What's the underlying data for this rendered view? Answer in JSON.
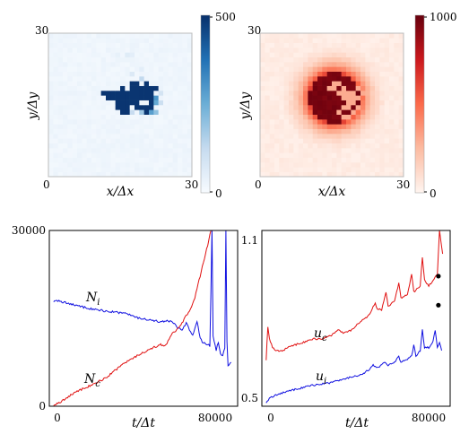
{
  "chart_data": [
    {
      "type": "heatmap",
      "colormap": "Blues",
      "grid_size": 30,
      "xlabel": "x/Δx",
      "ylabel": "y/Δy",
      "x_ticks": [
        "0",
        "30"
      ],
      "y_ticks": [
        "0",
        "30"
      ],
      "colorbar_ticks": [
        "0",
        "500"
      ],
      "clim": [
        0,
        500
      ],
      "background_value": 12,
      "cluster": {
        "rows": [
          {
            "y": 19,
            "x": [
              17,
              18,
              20
            ]
          },
          {
            "y": 18,
            "x": [
              15,
              17,
              18,
              19,
              20,
              21,
              22
            ]
          },
          {
            "y": 17,
            "x": [
              11,
              12,
              13,
              14,
              15,
              16,
              17,
              18,
              19,
              20,
              21
            ]
          },
          {
            "y": 16,
            "x": [
              12,
              13,
              14,
              15,
              16,
              17,
              18,
              19,
              20,
              21
            ]
          },
          {
            "y": 15,
            "x": [
              14,
              15,
              16,
              17,
              18,
              21
            ]
          },
          {
            "y": 14,
            "x": [
              14,
              15,
              16,
              18,
              19,
              20,
              21
            ]
          },
          {
            "y": 13,
            "x": [
              15,
              16,
              20
            ]
          }
        ],
        "value": 490
      },
      "halo": [
        {
          "x": 22,
          "y": 18,
          "v": 220
        },
        {
          "x": 22,
          "y": 16,
          "v": 300
        },
        {
          "x": 22,
          "y": 15,
          "v": 260
        },
        {
          "x": 21,
          "y": 13,
          "v": 280
        },
        {
          "x": 22,
          "y": 13,
          "v": 200
        },
        {
          "x": 19,
          "y": 13,
          "v": 180
        },
        {
          "x": 17,
          "y": 13,
          "v": 120
        },
        {
          "x": 23,
          "y": 17,
          "v": 90
        },
        {
          "x": 23,
          "y": 15,
          "v": 110
        },
        {
          "x": 19,
          "y": 20,
          "v": 130
        },
        {
          "x": 17,
          "y": 21,
          "v": 70
        },
        {
          "x": 16,
          "y": 25,
          "v": 60
        },
        {
          "x": 17,
          "y": 25,
          "v": 50
        },
        {
          "x": 14,
          "y": 25,
          "v": 40
        },
        {
          "x": 19,
          "y": 22,
          "v": 50
        }
      ]
    },
    {
      "type": "heatmap",
      "colormap": "Reds",
      "grid_size": 30,
      "xlabel": "x/Δx",
      "ylabel": "y/Δy",
      "x_ticks": [
        "0",
        "30"
      ],
      "y_ticks": [
        "0",
        "30"
      ],
      "colorbar_ticks": [
        "0",
        "1000"
      ],
      "clim": [
        0,
        1000
      ],
      "blob": {
        "center": [
          15.5,
          16.5
        ],
        "radius": 5.2,
        "core_value": 960,
        "falloff_cells": 6
      },
      "light_cells": [
        [
          15,
          19
        ],
        [
          16,
          19
        ],
        [
          14,
          18
        ],
        [
          17,
          18
        ],
        [
          16,
          17
        ],
        [
          17,
          17
        ],
        [
          18,
          17
        ],
        [
          19,
          17
        ],
        [
          17,
          16
        ],
        [
          18,
          16
        ],
        [
          19,
          16
        ],
        [
          20,
          16
        ],
        [
          18,
          15
        ],
        [
          19,
          15
        ],
        [
          17,
          14
        ],
        [
          18,
          14
        ],
        [
          20,
          14
        ],
        [
          16,
          13
        ],
        [
          19,
          13
        ],
        [
          17,
          12
        ],
        [
          18,
          12
        ],
        [
          15,
          18
        ],
        [
          20,
          18
        ],
        [
          21,
          17
        ]
      ]
    },
    {
      "type": "line",
      "xlabel": "t/Δt",
      "x_ticks": [
        "0",
        "80000"
      ],
      "y_ticks": [
        "0",
        "30000"
      ],
      "xlim": [
        -2000,
        86000
      ],
      "ylim": [
        0,
        30000
      ],
      "series": [
        {
          "name": "N_i",
          "label_base": "N",
          "label_sub": "i",
          "color": "#1010e0",
          "points": [
            [
              0,
              18000
            ],
            [
              5000,
              17800
            ],
            [
              10000,
              17200
            ],
            [
              15000,
              16800
            ],
            [
              20000,
              16500
            ],
            [
              25000,
              16200
            ],
            [
              30000,
              16000
            ],
            [
              35000,
              15700
            ],
            [
              40000,
              15000
            ],
            [
              45000,
              14800
            ],
            [
              50000,
              14400
            ],
            [
              55000,
              14600
            ],
            [
              58000,
              13400
            ],
            [
              60000,
              13000
            ],
            [
              62000,
              14200
            ],
            [
              65000,
              12000
            ],
            [
              67000,
              14500
            ],
            [
              68500,
              11500
            ],
            [
              70000,
              10800
            ],
            [
              72000,
              10500
            ],
            [
              73000,
              10300
            ],
            [
              73500,
              19500
            ],
            [
              74000,
              30000
            ],
            [
              74500,
              12000
            ],
            [
              76000,
              9500
            ],
            [
              77000,
              11000
            ],
            [
              78000,
              9000
            ],
            [
              79000,
              8500
            ],
            [
              80000,
              10000
            ],
            [
              80500,
              30000
            ],
            [
              81000,
              11000
            ],
            [
              81500,
              7000
            ],
            [
              82000,
              7200
            ],
            [
              83000,
              7500
            ]
          ]
        },
        {
          "name": "N_c",
          "label_base": "N",
          "label_sub": "c",
          "color": "#e01010",
          "points": [
            [
              0,
              0
            ],
            [
              5000,
              1200
            ],
            [
              10000,
              2300
            ],
            [
              15000,
              3200
            ],
            [
              20000,
              4000
            ],
            [
              25000,
              5000
            ],
            [
              30000,
              6500
            ],
            [
              35000,
              7800
            ],
            [
              40000,
              8800
            ],
            [
              45000,
              9800
            ],
            [
              50000,
              10500
            ],
            [
              52000,
              10200
            ],
            [
              55000,
              12200
            ],
            [
              58000,
              13200
            ],
            [
              60000,
              14200
            ],
            [
              62000,
              15500
            ],
            [
              64000,
              16500
            ],
            [
              66000,
              18500
            ],
            [
              68000,
              21500
            ],
            [
              70000,
              24500
            ],
            [
              72000,
              27500
            ],
            [
              73500,
              30000
            ]
          ]
        }
      ]
    },
    {
      "type": "line",
      "xlabel": "t/Δt",
      "x_ticks": [
        "0",
        "80000"
      ],
      "y_ticks": [
        "0.5",
        "1.1"
      ],
      "xlim": [
        -2000,
        86000
      ],
      "ylim": [
        0.5,
        1.1
      ],
      "series": [
        {
          "name": "u_c",
          "label_base": "u",
          "label_sub": "c",
          "color": "#e01010",
          "points": [
            [
              0,
              0.66
            ],
            [
              800,
              0.77
            ],
            [
              1500,
              0.73
            ],
            [
              3000,
              0.7
            ],
            [
              5000,
              0.69
            ],
            [
              8000,
              0.69
            ],
            [
              10000,
              0.7
            ],
            [
              14000,
              0.71
            ],
            [
              18000,
              0.72
            ],
            [
              22000,
              0.73
            ],
            [
              26000,
              0.73
            ],
            [
              30000,
              0.74
            ],
            [
              34000,
              0.76
            ],
            [
              36000,
              0.75
            ],
            [
              40000,
              0.76
            ],
            [
              44000,
              0.79
            ],
            [
              46000,
              0.8
            ],
            [
              48000,
              0.81
            ],
            [
              50000,
              0.84
            ],
            [
              51000,
              0.85
            ],
            [
              52000,
              0.83
            ],
            [
              54000,
              0.83
            ],
            [
              56000,
              0.89
            ],
            [
              57000,
              0.84
            ],
            [
              60000,
              0.86
            ],
            [
              62000,
              0.92
            ],
            [
              63000,
              0.87
            ],
            [
              66000,
              0.88
            ],
            [
              68000,
              0.95
            ],
            [
              69000,
              0.89
            ],
            [
              72000,
              0.91
            ],
            [
              73000,
              1.01
            ],
            [
              74000,
              0.93
            ],
            [
              76000,
              0.91
            ],
            [
              78000,
              0.93
            ],
            [
              80000,
              0.95
            ],
            [
              81000,
              1.1
            ],
            [
              82500,
              1.02
            ]
          ]
        },
        {
          "name": "u_i",
          "label_base": "u",
          "label_sub": "i",
          "color": "#1010e0",
          "points": [
            [
              0,
              0.51
            ],
            [
              2000,
              0.53
            ],
            [
              5000,
              0.54
            ],
            [
              10000,
              0.55
            ],
            [
              15000,
              0.56
            ],
            [
              20000,
              0.57
            ],
            [
              25000,
              0.575
            ],
            [
              30000,
              0.58
            ],
            [
              35000,
              0.59
            ],
            [
              40000,
              0.6
            ],
            [
              45000,
              0.61
            ],
            [
              48000,
              0.625
            ],
            [
              50000,
              0.64
            ],
            [
              52000,
              0.63
            ],
            [
              55000,
              0.65
            ],
            [
              57000,
              0.64
            ],
            [
              60000,
              0.65
            ],
            [
              62000,
              0.67
            ],
            [
              63000,
              0.65
            ],
            [
              66000,
              0.66
            ],
            [
              68000,
              0.67
            ],
            [
              69000,
              0.71
            ],
            [
              70000,
              0.67
            ],
            [
              72000,
              0.69
            ],
            [
              73000,
              0.76
            ],
            [
              74000,
              0.7
            ],
            [
              76000,
              0.7
            ],
            [
              78000,
              0.72
            ],
            [
              79000,
              0.76
            ],
            [
              80000,
              0.7
            ],
            [
              81000,
              0.72
            ],
            [
              82000,
              0.69
            ]
          ]
        }
      ],
      "markers": [
        [
          80500,
          0.944
        ],
        [
          80500,
          0.845
        ]
      ]
    }
  ]
}
